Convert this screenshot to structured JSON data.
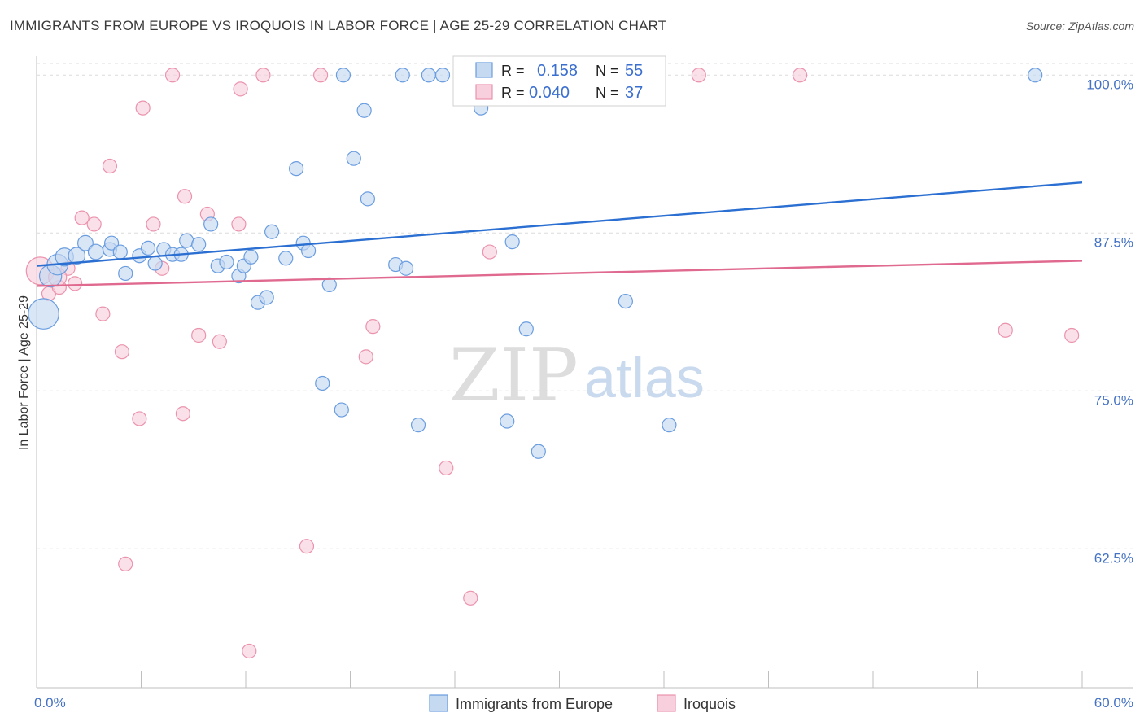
{
  "title": "IMMIGRANTS FROM EUROPE VS IROQUOIS IN LABOR FORCE | AGE 25-29 CORRELATION CHART",
  "source": "Source: ZipAtlas.com",
  "watermark": {
    "zip": "ZIP",
    "atlas": "atlas"
  },
  "colors": {
    "blue_fill": "#c5d9f1",
    "blue_stroke": "#6a9de0",
    "blue_line": "#2a6fd1",
    "pink_fill": "#f8cfdc",
    "pink_stroke": "#eb93ad",
    "pink_line": "#e0698f",
    "axis_label": "#4472c4",
    "grid": "#dcdcdc"
  },
  "stats": [
    {
      "r_label": "R =",
      "r_value": "0.158",
      "n_label": "N =",
      "n_value": "55"
    },
    {
      "r_label": "R =",
      "r_value": "0.040",
      "n_label": "N =",
      "n_value": "37"
    }
  ],
  "chart_data": {
    "type": "scatter",
    "title": "IMMIGRANTS FROM EUROPE VS IROQUOIS IN LABOR FORCE | AGE 25-29 CORRELATION CHART",
    "xlabel": "",
    "ylabel": "In Labor Force | Age 25-29",
    "xlim": [
      0,
      60
    ],
    "ylim": [
      51.5,
      101.5
    ],
    "x_tick_labels": [
      "0.0%",
      "60.0%"
    ],
    "y_ticks": [
      62.5,
      75.0,
      87.5,
      100.0
    ],
    "y_tick_labels": [
      "62.5%",
      "75.0%",
      "87.5%",
      "100.0%"
    ],
    "grid": true,
    "legend_position": "bottom",
    "series": [
      {
        "name": "Immigrants from Europe",
        "color": "#6a9de0",
        "trend": {
          "x": [
            0,
            60
          ],
          "y": [
            84.9,
            91.5
          ]
        },
        "points": [
          [
            0.4,
            81.1,
            2.2
          ],
          [
            0.8,
            84.1,
            1.6
          ],
          [
            1.2,
            85.0,
            1.5
          ],
          [
            1.6,
            85.6,
            1.3
          ],
          [
            2.3,
            85.7,
            1.2
          ],
          [
            2.8,
            86.7,
            1.1
          ],
          [
            3.4,
            86.0,
            1.1
          ],
          [
            4.2,
            86.2,
            1.0
          ],
          [
            4.3,
            86.7,
            1.0
          ],
          [
            4.8,
            86.0,
            1.0
          ],
          [
            5.1,
            84.3,
            1.0
          ],
          [
            5.9,
            85.7,
            1.0
          ],
          [
            6.4,
            86.3,
            1.0
          ],
          [
            6.8,
            85.1,
            1.0
          ],
          [
            7.3,
            86.2,
            1.0
          ],
          [
            7.8,
            85.8,
            1.0
          ],
          [
            8.3,
            85.8,
            1.0
          ],
          [
            8.6,
            86.9,
            1.0
          ],
          [
            9.3,
            86.6,
            1.0
          ],
          [
            10.0,
            88.2,
            1.0
          ],
          [
            10.4,
            84.9,
            1.0
          ],
          [
            10.9,
            85.2,
            1.0
          ],
          [
            11.6,
            84.1,
            1.0
          ],
          [
            11.9,
            84.9,
            1.0
          ],
          [
            12.3,
            85.6,
            1.0
          ],
          [
            12.7,
            82.0,
            1.0
          ],
          [
            13.2,
            82.4,
            1.0
          ],
          [
            13.5,
            87.6,
            1.0
          ],
          [
            14.3,
            85.5,
            1.0
          ],
          [
            14.9,
            92.6,
            1.0
          ],
          [
            15.3,
            86.7,
            1.0
          ],
          [
            15.6,
            86.1,
            1.0
          ],
          [
            16.4,
            75.6,
            1.0
          ],
          [
            16.8,
            83.4,
            1.0
          ],
          [
            17.5,
            73.5,
            1.0
          ],
          [
            17.6,
            100.0,
            1.0
          ],
          [
            18.2,
            93.4,
            1.0
          ],
          [
            18.8,
            97.2,
            1.0
          ],
          [
            19.0,
            90.2,
            1.0
          ],
          [
            20.6,
            85.0,
            1.0
          ],
          [
            21.0,
            100.0,
            1.0
          ],
          [
            21.2,
            84.7,
            1.0
          ],
          [
            21.9,
            72.3,
            1.0
          ],
          [
            22.5,
            100.0,
            1.0
          ],
          [
            23.3,
            100.0,
            1.0
          ],
          [
            25.5,
            97.4,
            1.0
          ],
          [
            25.8,
            100.0,
            1.0
          ],
          [
            26.1,
            99.5,
            1.0
          ],
          [
            27.0,
            72.6,
            1.0
          ],
          [
            27.3,
            86.8,
            1.0
          ],
          [
            28.1,
            79.9,
            1.0
          ],
          [
            28.8,
            70.2,
            1.0
          ],
          [
            33.0,
            100.0,
            1.0
          ],
          [
            33.8,
            82.1,
            1.0
          ],
          [
            36.3,
            72.3,
            1.0
          ],
          [
            57.3,
            100.0,
            1.0
          ]
        ]
      },
      {
        "name": "Iroquois",
        "color": "#eb93ad",
        "trend": {
          "x": [
            0,
            60
          ],
          "y": [
            83.3,
            85.3
          ]
        },
        "points": [
          [
            0.2,
            84.5,
            2.0
          ],
          [
            0.7,
            82.7,
            1.0
          ],
          [
            1.3,
            83.2,
            1.0
          ],
          [
            1.8,
            84.7,
            1.0
          ],
          [
            2.2,
            83.5,
            1.0
          ],
          [
            2.6,
            88.7,
            1.0
          ],
          [
            3.3,
            88.2,
            1.0
          ],
          [
            3.8,
            81.1,
            1.0
          ],
          [
            4.2,
            92.8,
            1.0
          ],
          [
            4.9,
            78.1,
            1.0
          ],
          [
            5.1,
            61.3,
            1.0
          ],
          [
            5.9,
            72.8,
            1.0
          ],
          [
            6.1,
            97.4,
            1.0
          ],
          [
            6.7,
            88.2,
            1.0
          ],
          [
            7.2,
            84.7,
            1.0
          ],
          [
            7.8,
            100.0,
            1.0
          ],
          [
            8.4,
            73.2,
            1.0
          ],
          [
            8.5,
            90.4,
            1.0
          ],
          [
            9.3,
            79.4,
            1.0
          ],
          [
            9.8,
            89.0,
            1.0
          ],
          [
            10.5,
            78.9,
            1.0
          ],
          [
            11.6,
            88.2,
            1.0
          ],
          [
            11.7,
            98.9,
            1.0
          ],
          [
            12.2,
            54.4,
            1.0
          ],
          [
            13.0,
            100.0,
            1.0
          ],
          [
            15.5,
            62.7,
            1.0
          ],
          [
            16.3,
            100.0,
            1.0
          ],
          [
            18.9,
            77.7,
            1.0
          ],
          [
            19.3,
            80.1,
            1.0
          ],
          [
            23.5,
            68.9,
            1.0
          ],
          [
            24.9,
            58.6,
            1.0
          ],
          [
            26.0,
            86.0,
            1.0
          ],
          [
            38.0,
            100.0,
            1.0
          ],
          [
            43.8,
            100.0,
            1.0
          ],
          [
            55.6,
            79.8,
            1.0
          ],
          [
            59.4,
            79.4,
            1.0
          ],
          [
            1.2,
            84.0,
            1.3
          ]
        ]
      }
    ]
  }
}
